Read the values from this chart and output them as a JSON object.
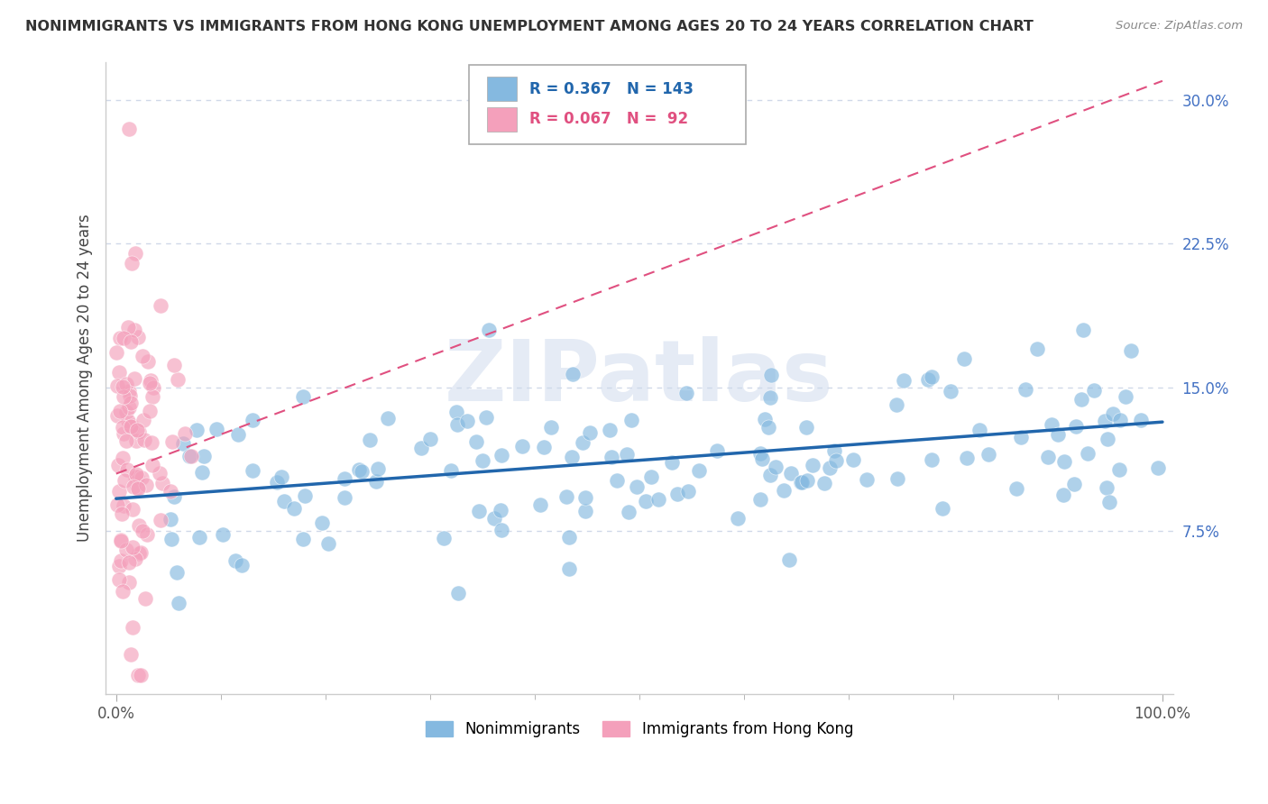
{
  "title": "NONIMMIGRANTS VS IMMIGRANTS FROM HONG KONG UNEMPLOYMENT AMONG AGES 20 TO 24 YEARS CORRELATION CHART",
  "source": "Source: ZipAtlas.com",
  "ylabel": "Unemployment Among Ages 20 to 24 years",
  "xlim": [
    -1,
    101
  ],
  "ylim": [
    -1,
    32
  ],
  "yticks": [
    7.5,
    15.0,
    22.5,
    30.0
  ],
  "ytick_labels": [
    "7.5%",
    "15.0%",
    "22.5%",
    "30.0%"
  ],
  "xtick_labels": [
    "0.0%",
    "100.0%"
  ],
  "nonimm_color": "#85b9e0",
  "imm_color": "#f4a0bb",
  "nonimm_trend_color": "#2166ac",
  "imm_trend_color": "#e05080",
  "nonimm_R": 0.367,
  "nonimm_N": 143,
  "imm_R": 0.067,
  "imm_N": 92,
  "background_color": "#ffffff",
  "watermark": "ZIPatlas",
  "grid_color": "#d0d8e8",
  "nonimm_trend_x0": 0,
  "nonimm_trend_y0": 9.2,
  "nonimm_trend_x1": 100,
  "nonimm_trend_y1": 13.2,
  "imm_trend_x0": 0,
  "imm_trend_y0": 10.5,
  "imm_trend_x1": 100,
  "imm_trend_y1": 31.0
}
